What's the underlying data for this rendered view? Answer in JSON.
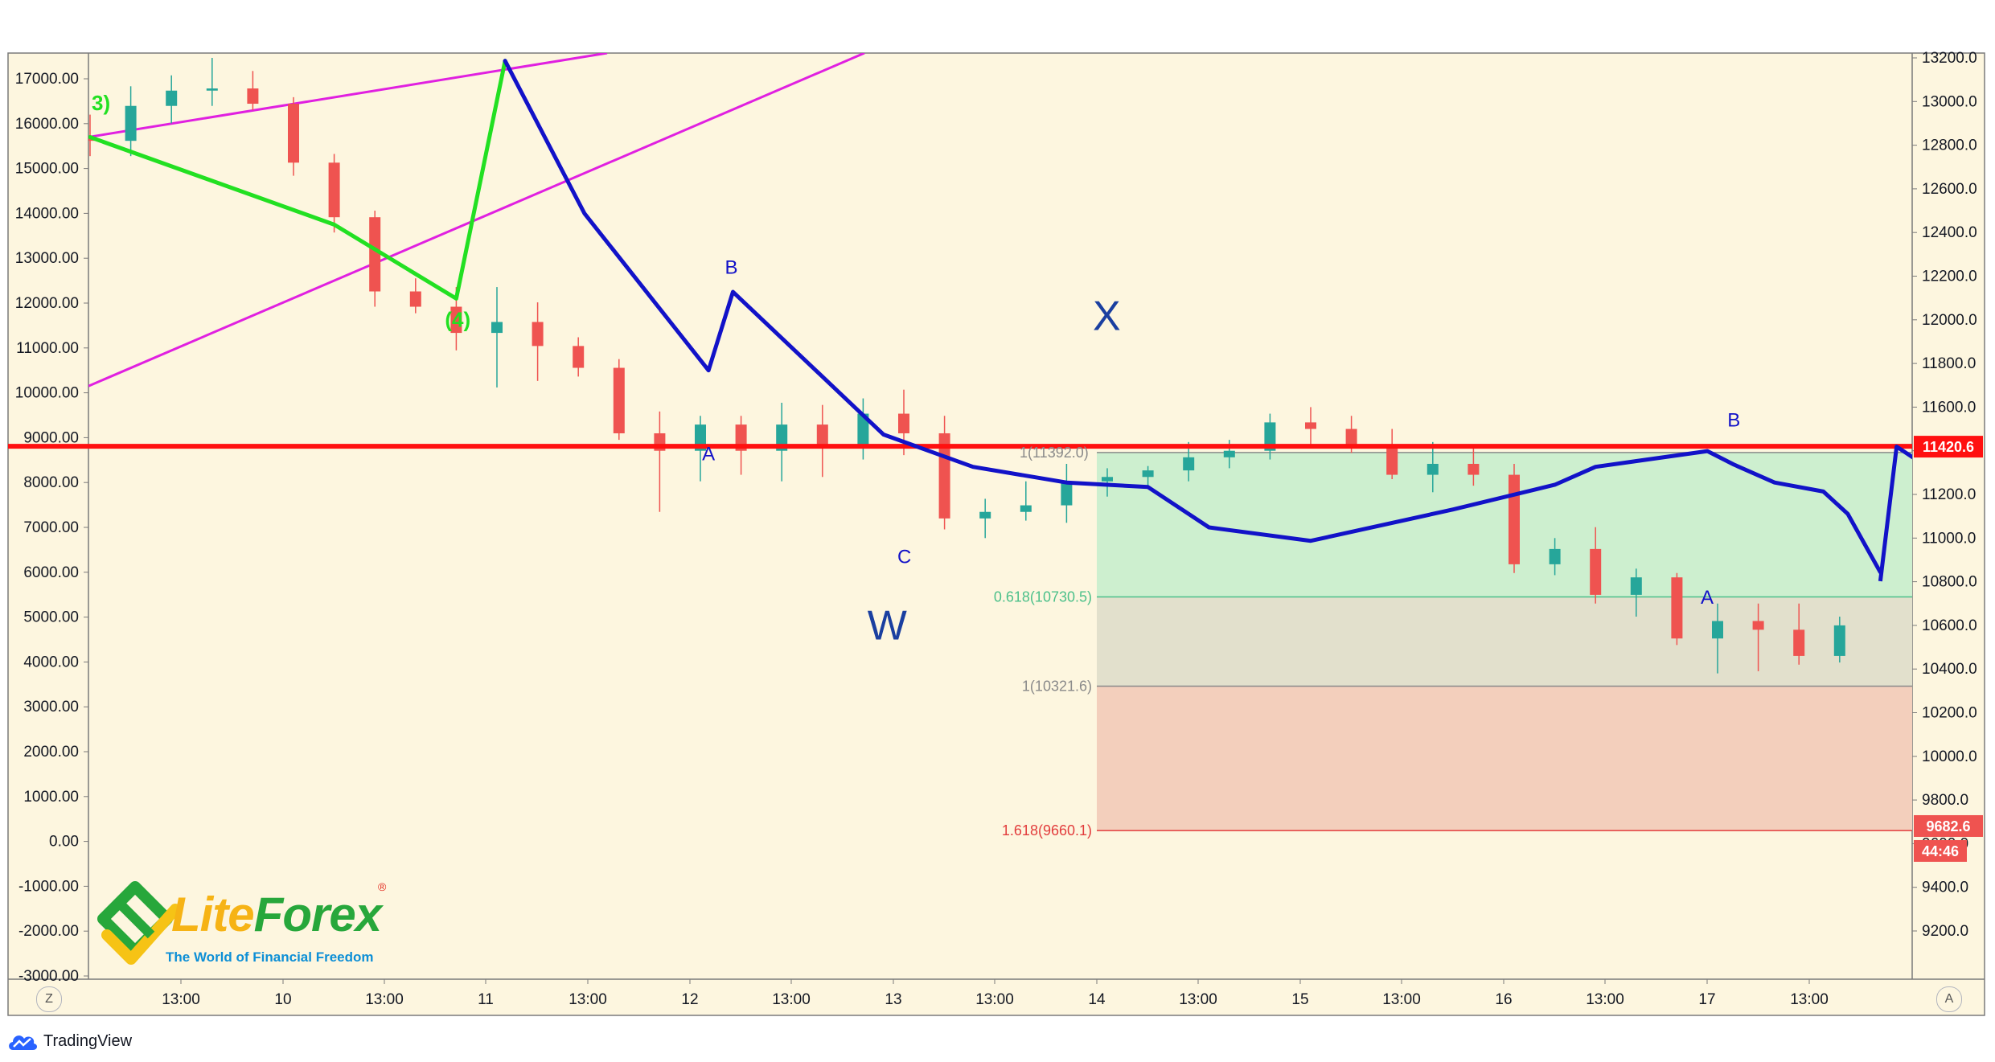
{
  "colors": {
    "background": "#fdf6df",
    "up": "#26a69a",
    "down": "#ef5350",
    "wave_blue": "#1212c8",
    "wave_green": "#22e022",
    "channel": "#e020e0",
    "support": "#ff1010",
    "zone_green": "#cdefcf",
    "zone_red": "#f3cfbc"
  },
  "icons": {
    "timezone": "Z",
    "autoscale": "A",
    "brand": "tradingview-cloud-icon"
  },
  "footer": {
    "brand": "TradingView"
  },
  "logo": {
    "name_part1": "Lite",
    "name_part2": "Forex",
    "registered": "®",
    "tagline": "The World of Financial Freedom"
  },
  "chart_data": {
    "type": "candlestick",
    "left_axis": {
      "ticks": [
        "17000.00",
        "16000.00",
        "15000.00",
        "14000.00",
        "13000.00",
        "12000.00",
        "11000.00",
        "10000.00",
        "9000.00",
        "8000.00",
        "7000.00",
        "6000.00",
        "5000.00",
        "4000.00",
        "3000.00",
        "2000.00",
        "1000.00",
        "0.00",
        "-1000.00",
        "-2000.00",
        "-3000.00"
      ],
      "ylim": [
        -3000,
        17700
      ]
    },
    "right_axis": {
      "ticks": [
        "13200.0",
        "13000.0",
        "12800.0",
        "12600.0",
        "12400.0",
        "12200.0",
        "12000.0",
        "11800.0",
        "11600.0",
        "11400.0",
        "11200.0",
        "11000.0",
        "10800.0",
        "10600.0",
        "10400.0",
        "10200.0",
        "10000.0",
        "9800.0",
        "9600.0",
        "9400.0",
        "9200.0"
      ],
      "ylim": [
        9000,
        13200
      ]
    },
    "x_axis": {
      "labels": [
        "13:00",
        "10",
        "13:00",
        "11",
        "13:00",
        "12",
        "13:00",
        "13",
        "13:00",
        "14",
        "13:00",
        "15",
        "13:00",
        "16",
        "13:00",
        "17",
        "13:00"
      ]
    },
    "price_tags": [
      {
        "label": "11420.6",
        "price": 11420.6,
        "color": "#ff1010"
      },
      {
        "label": "9682.6",
        "price": 9682.6,
        "color": "#ef5350"
      },
      {
        "label": "44:46",
        "color": "#ef5350"
      }
    ],
    "support_line": {
      "price": 11420.6
    },
    "fib_levels": [
      {
        "label": "1(11392.0)",
        "price": 11392.0,
        "color": "#8a8a8a"
      },
      {
        "label": "0.618(10730.5)",
        "price": 10730.5,
        "color": "#4cc08a"
      },
      {
        "label": "1(10321.6)",
        "price": 10321.6,
        "color": "#8a8a8a"
      },
      {
        "label": "1.618(9660.1)",
        "price": 9660.1,
        "color": "#e23c3c"
      }
    ],
    "wave_labels": [
      {
        "text": "3)",
        "role": "green"
      },
      {
        "text": "(4)",
        "role": "green"
      },
      {
        "text": "A",
        "role": "small"
      },
      {
        "text": "B",
        "role": "small"
      },
      {
        "text": "C",
        "role": "small"
      },
      {
        "text": "W",
        "role": "big"
      },
      {
        "text": "X",
        "role": "big"
      },
      {
        "text": "B",
        "role": "small"
      },
      {
        "text": "A",
        "role": "small"
      }
    ],
    "candles": [
      {
        "t": 0.0,
        "o": 12830,
        "h": 12940,
        "l": 12750,
        "c": 12820
      },
      {
        "t": 0.2,
        "o": 12820,
        "h": 13070,
        "l": 12750,
        "c": 12980
      },
      {
        "t": 0.4,
        "o": 12980,
        "h": 13120,
        "l": 12900,
        "c": 13050
      },
      {
        "t": 0.6,
        "o": 13050,
        "h": 13200,
        "l": 12980,
        "c": 13060
      },
      {
        "t": 0.8,
        "o": 13060,
        "h": 13140,
        "l": 12960,
        "c": 12990
      },
      {
        "t": 1.0,
        "o": 12990,
        "h": 13020,
        "l": 12660,
        "c": 12720
      },
      {
        "t": 1.2,
        "o": 12720,
        "h": 12760,
        "l": 12400,
        "c": 12470
      },
      {
        "t": 1.4,
        "o": 12470,
        "h": 12500,
        "l": 12060,
        "c": 12130
      },
      {
        "t": 1.6,
        "o": 12130,
        "h": 12190,
        "l": 12030,
        "c": 12060
      },
      {
        "t": 1.8,
        "o": 12060,
        "h": 12150,
        "l": 11860,
        "c": 11940
      },
      {
        "t": 2.0,
        "o": 11940,
        "h": 12150,
        "l": 11690,
        "c": 11990
      },
      {
        "t": 2.2,
        "o": 11990,
        "h": 12080,
        "l": 11720,
        "c": 11880
      },
      {
        "t": 2.4,
        "o": 11880,
        "h": 11920,
        "l": 11740,
        "c": 11780
      },
      {
        "t": 2.6,
        "o": 11780,
        "h": 11820,
        "l": 11450,
        "c": 11480
      },
      {
        "t": 2.8,
        "o": 11480,
        "h": 11580,
        "l": 11120,
        "c": 11400
      },
      {
        "t": 3.0,
        "o": 11400,
        "h": 11560,
        "l": 11260,
        "c": 11520
      },
      {
        "t": 3.2,
        "o": 11520,
        "h": 11560,
        "l": 11290,
        "c": 11400
      },
      {
        "t": 3.4,
        "o": 11400,
        "h": 11620,
        "l": 11260,
        "c": 11520
      },
      {
        "t": 3.6,
        "o": 11520,
        "h": 11610,
        "l": 11280,
        "c": 11410
      },
      {
        "t": 3.8,
        "o": 11410,
        "h": 11640,
        "l": 11360,
        "c": 11570
      },
      {
        "t": 4.0,
        "o": 11570,
        "h": 11680,
        "l": 11380,
        "c": 11480
      },
      {
        "t": 4.2,
        "o": 11480,
        "h": 11560,
        "l": 11040,
        "c": 11090
      },
      {
        "t": 4.4,
        "o": 11090,
        "h": 11180,
        "l": 11000,
        "c": 11120
      },
      {
        "t": 4.6,
        "o": 11120,
        "h": 11260,
        "l": 11080,
        "c": 11150
      },
      {
        "t": 4.8,
        "o": 11150,
        "h": 11340,
        "l": 11070,
        "c": 11260
      },
      {
        "t": 5.0,
        "o": 11260,
        "h": 11320,
        "l": 11190,
        "c": 11280
      },
      {
        "t": 5.2,
        "o": 11280,
        "h": 11330,
        "l": 11230,
        "c": 11310
      },
      {
        "t": 5.4,
        "o": 11310,
        "h": 11440,
        "l": 11260,
        "c": 11370
      },
      {
        "t": 5.6,
        "o": 11370,
        "h": 11450,
        "l": 11320,
        "c": 11400
      },
      {
        "t": 5.8,
        "o": 11400,
        "h": 11570,
        "l": 11360,
        "c": 11530
      },
      {
        "t": 6.0,
        "o": 11530,
        "h": 11600,
        "l": 11420,
        "c": 11500
      },
      {
        "t": 6.2,
        "o": 11500,
        "h": 11560,
        "l": 11390,
        "c": 11420
      },
      {
        "t": 6.4,
        "o": 11420,
        "h": 11500,
        "l": 11270,
        "c": 11290
      },
      {
        "t": 6.6,
        "o": 11290,
        "h": 11440,
        "l": 11210,
        "c": 11340
      },
      {
        "t": 6.8,
        "o": 11340,
        "h": 11420,
        "l": 11240,
        "c": 11290
      },
      {
        "t": 7.0,
        "o": 11290,
        "h": 11340,
        "l": 10840,
        "c": 10880
      },
      {
        "t": 7.2,
        "o": 10880,
        "h": 11000,
        "l": 10830,
        "c": 10950
      },
      {
        "t": 7.4,
        "o": 10950,
        "h": 11050,
        "l": 10700,
        "c": 10740
      },
      {
        "t": 7.6,
        "o": 10740,
        "h": 10860,
        "l": 10640,
        "c": 10820
      },
      {
        "t": 7.8,
        "o": 10820,
        "h": 10840,
        "l": 10510,
        "c": 10540
      },
      {
        "t": 8.0,
        "o": 10540,
        "h": 10700,
        "l": 10380,
        "c": 10620
      },
      {
        "t": 8.2,
        "o": 10620,
        "h": 10700,
        "l": 10390,
        "c": 10580
      },
      {
        "t": 8.4,
        "o": 10580,
        "h": 10700,
        "l": 10420,
        "c": 10460
      },
      {
        "t": 8.6,
        "o": 10460,
        "h": 10640,
        "l": 10430,
        "c": 10600
      }
    ],
    "wave_lines": [
      {
        "role": "green",
        "points": [
          [
            0.0,
            15700
          ],
          [
            1.2,
            13750
          ],
          [
            1.8,
            12100
          ],
          [
            2.04,
            17400
          ]
        ]
      },
      {
        "role": "blue",
        "points": [
          [
            2.04,
            17400
          ],
          [
            2.43,
            14000
          ],
          [
            3.04,
            10500
          ],
          [
            3.16,
            12250
          ],
          [
            3.9,
            9070
          ],
          [
            4.34,
            8350
          ],
          [
            4.8,
            8000
          ],
          [
            5.2,
            7900
          ],
          [
            5.5,
            7000
          ],
          [
            6.0,
            6700
          ],
          [
            6.7,
            7400
          ],
          [
            7.2,
            7950
          ],
          [
            7.4,
            8350
          ],
          [
            7.95,
            8700
          ],
          [
            8.08,
            8400
          ],
          [
            8.28,
            8000
          ],
          [
            8.52,
            7800
          ],
          [
            8.64,
            7300
          ],
          [
            8.8,
            6000
          ]
        ]
      }
    ]
  }
}
